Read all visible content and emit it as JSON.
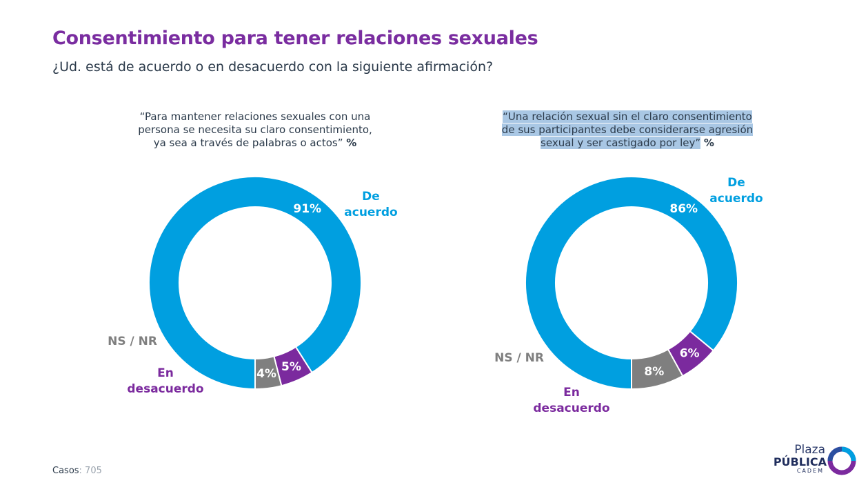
{
  "title": "Consentimiento para tener relaciones sexuales",
  "subtitle": "¿Ud. está de acuerdo o en desacuerdo con la siguiente afirmación?",
  "questions": [
    {
      "lines": [
        "“Para mantener relaciones sexuales con una",
        "persona se necesita su claro consentimiento,",
        "ya sea a través de palabras o actos”"
      ],
      "pct_mark": "%"
    },
    {
      "lines": [
        "“Una relación sexual sin el claro consentimiento",
        "de sus participantes debe considerarse agresión",
        "sexual y ser castigado por ley”"
      ],
      "pct_mark": "%"
    }
  ],
  "chart_data": [
    {
      "type": "pie",
      "donut": true,
      "categories": [
        "De acuerdo",
        "En desacuerdo",
        "NS / NR"
      ],
      "values": [
        91,
        5,
        4
      ],
      "value_labels": [
        "91%",
        "5%",
        "4%"
      ],
      "colors": [
        "#009fe0",
        "#7b2a9e",
        "#7f7f7f"
      ]
    },
    {
      "type": "pie",
      "donut": true,
      "categories": [
        "De acuerdo",
        "En desacuerdo",
        "NS / NR"
      ],
      "values": [
        86,
        6,
        8
      ],
      "value_labels": [
        "86%",
        "6%",
        "8%"
      ],
      "colors": [
        "#009fe0",
        "#7b2a9e",
        "#7f7f7f"
      ]
    }
  ],
  "category_labels": {
    "agree": [
      "De",
      "acuerdo"
    ],
    "disagree": [
      "En",
      "desacuerdo"
    ],
    "nsnr": [
      "NS / NR"
    ]
  },
  "footer": {
    "casos_label": "Casos",
    "casos_value": ": 705"
  },
  "logo": {
    "line1": "Plaza",
    "line2": "PÚBLICA",
    "line3": "CADEM"
  }
}
